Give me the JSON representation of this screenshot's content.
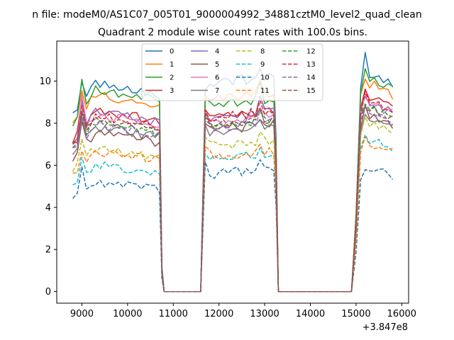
{
  "chart_data": {
    "type": "line",
    "suptitle": "n file: modeM0/AS1C07_005T01_9000004992_34881cztM0_level2_quad_clean",
    "title": "Quadrant 2 module wise count rates with 100.0s bins.",
    "xlabel": "",
    "ylabel": "",
    "x_offset_label": "+3.847e8",
    "xlim": [
      8450,
      16150
    ],
    "ylim": [
      -0.55,
      11.9
    ],
    "x_ticks": [
      9000,
      10000,
      11000,
      12000,
      13000,
      14000,
      15000,
      16000
    ],
    "x_tick_labels": [
      "9000",
      "10000",
      "11000",
      "12000",
      "13000",
      "14000",
      "15000",
      "16000"
    ],
    "y_ticks": [
      0,
      2,
      4,
      6,
      8,
      10
    ],
    "y_tick_labels": [
      "0",
      "2",
      "4",
      "6",
      "8",
      "10"
    ],
    "grid": false,
    "legend_position": "top-center",
    "segments": [
      {
        "x0": 8800,
        "x1": 10700,
        "step": 100
      },
      {
        "x0": 10800,
        "x1": 11600,
        "step": 100
      },
      {
        "x0": 11700,
        "x1": 13200,
        "step": 100
      },
      {
        "x0": 13300,
        "x1": 14900,
        "step": 100
      },
      {
        "x0": 15000,
        "x1": 15800,
        "step": 100
      }
    ],
    "series": [
      {
        "name": "0",
        "color": "#1f77b4",
        "dash": "solid",
        "levels": [
          9.9,
          9.8,
          10.3,
          10.3
        ],
        "peaks": [
          10.05,
          9.8,
          10.5,
          11.3
        ]
      },
      {
        "name": "1",
        "color": "#ff7f0e",
        "dash": "solid",
        "levels": [
          9.3,
          9.2,
          9.5,
          9.8
        ],
        "peaks": [
          9.7,
          9.5,
          9.9,
          10.2
        ]
      },
      {
        "name": "2",
        "color": "#2ca02c",
        "dash": "solid",
        "levels": [
          9.6,
          8.8,
          9.2,
          10.1
        ],
        "peaks": [
          10.3,
          9.3,
          9.8,
          10.4
        ]
      },
      {
        "name": "3",
        "color": "#d62728",
        "dash": "solid",
        "levels": [
          8.6,
          8.3,
          8.7,
          9.2
        ],
        "peaks": [
          9.0,
          8.8,
          9.1,
          9.6
        ]
      },
      {
        "name": "4",
        "color": "#9467bd",
        "dash": "solid",
        "levels": [
          8.5,
          8.2,
          8.5,
          9.0
        ],
        "peaks": [
          8.9,
          8.7,
          9.0,
          9.4
        ]
      },
      {
        "name": "5",
        "color": "#8c564b",
        "dash": "solid",
        "levels": [
          7.5,
          7.6,
          8.0,
          8.3
        ],
        "peaks": [
          8.0,
          8.1,
          8.4,
          8.7
        ]
      },
      {
        "name": "6",
        "color": "#e377c2",
        "dash": "solid",
        "levels": [
          8.4,
          8.0,
          8.3,
          8.9
        ],
        "peaks": [
          9.3,
          8.6,
          8.9,
          9.4
        ]
      },
      {
        "name": "7",
        "color": "#7f7f7f",
        "dash": "solid",
        "levels": [
          7.8,
          7.5,
          7.8,
          8.2
        ],
        "peaks": [
          8.3,
          8.0,
          8.3,
          8.6
        ]
      },
      {
        "name": "8",
        "color": "#bcbd22",
        "dash": "dashed",
        "levels": [
          6.8,
          6.9,
          7.2,
          7.9
        ],
        "peaks": [
          7.3,
          7.4,
          7.7,
          8.2
        ]
      },
      {
        "name": "9",
        "color": "#17becf",
        "dash": "dashed",
        "levels": [
          6.0,
          6.2,
          6.5,
          7.1
        ],
        "peaks": [
          6.5,
          6.6,
          6.9,
          7.5
        ]
      },
      {
        "name": "10",
        "color": "#1f77b4",
        "dash": "dashed",
        "levels": [
          5.2,
          5.6,
          5.8,
          5.8
        ],
        "peaks": [
          6.1,
          6.2,
          6.3,
          6.0
        ]
      },
      {
        "name": "11",
        "color": "#ff7f0e",
        "dash": "dashed",
        "levels": [
          6.6,
          6.5,
          6.6,
          7.0
        ],
        "peaks": [
          6.9,
          6.9,
          7.0,
          7.3
        ]
      },
      {
        "name": "12",
        "color": "#2ca02c",
        "dash": "dashed",
        "levels": [
          8.0,
          7.9,
          8.2,
          8.7
        ],
        "peaks": [
          8.4,
          8.3,
          8.6,
          9.0
        ]
      },
      {
        "name": "13",
        "color": "#d62728",
        "dash": "dashed",
        "levels": [
          8.3,
          8.2,
          8.6,
          9.0
        ],
        "peaks": [
          8.7,
          8.6,
          9.0,
          9.3
        ]
      },
      {
        "name": "14",
        "color": "#9467bd",
        "dash": "dashed",
        "levels": [
          7.9,
          7.7,
          8.0,
          8.5
        ],
        "peaks": [
          8.3,
          8.1,
          8.5,
          8.8
        ]
      },
      {
        "name": "15",
        "color": "#8c564b",
        "dash": "dashed",
        "levels": [
          8.1,
          7.9,
          8.2,
          8.6
        ],
        "peaks": [
          8.5,
          8.4,
          8.6,
          8.9
        ]
      }
    ]
  }
}
